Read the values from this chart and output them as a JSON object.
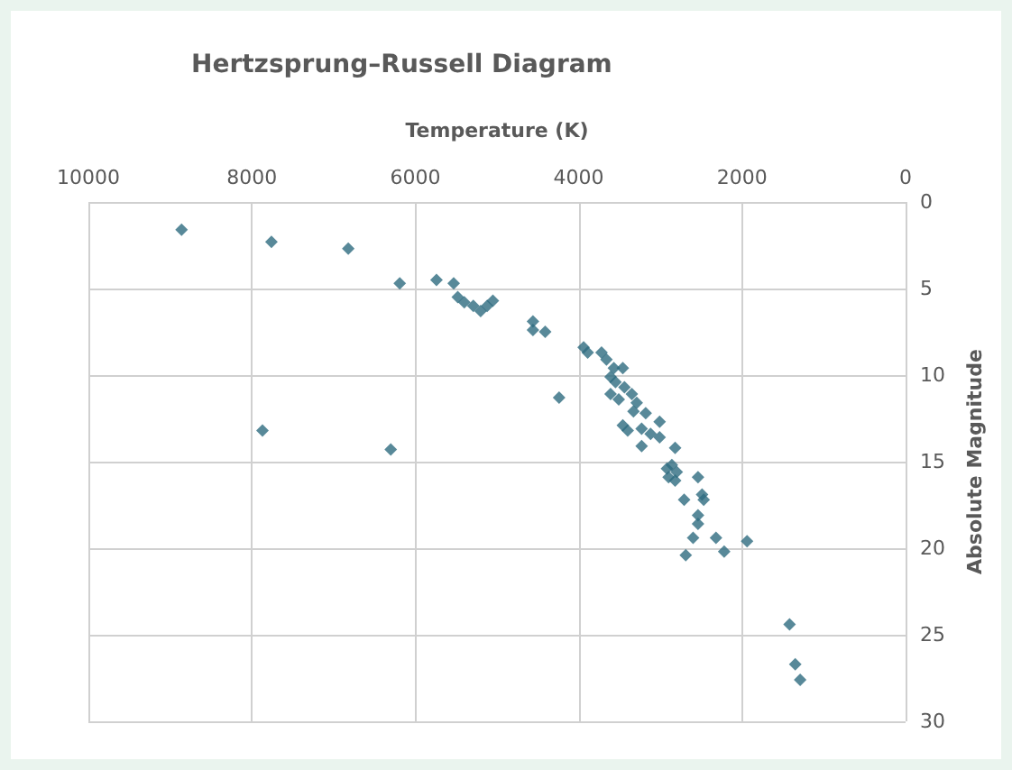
{
  "chart_data": {
    "type": "scatter",
    "title": "Hertzsprung–Russell Diagram",
    "xlabel": "Temperature (K)",
    "ylabel": "Absolute Magnitude",
    "x": [
      8860,
      7760,
      6820,
      6190,
      5740,
      5530,
      5480,
      5400,
      5290,
      5200,
      5120,
      5050,
      7870,
      6300,
      4560,
      4560,
      4410,
      4240,
      3940,
      3890,
      3720,
      3660,
      3570,
      3460,
      3610,
      3550,
      3440,
      3610,
      3350,
      3510,
      3290,
      3330,
      3180,
      3010,
      3460,
      3230,
      3400,
      3120,
      3010,
      3230,
      2820,
      2860,
      2920,
      2800,
      2900,
      2820,
      2540,
      2490,
      2470,
      2710,
      2540,
      2540,
      2600,
      2320,
      2690,
      2220,
      1940,
      1420,
      1350,
      1290
    ],
    "series": [
      {
        "color": "#2e6b80",
        "values": [
          1.6,
          2.3,
          2.7,
          4.7,
          4.5,
          4.7,
          5.5,
          5.8,
          6.0,
          6.3,
          6.0,
          5.7,
          13.2,
          14.3,
          6.9,
          7.4,
          7.5,
          11.3,
          8.4,
          8.7,
          8.7,
          9.1,
          9.6,
          9.6,
          10.1,
          10.4,
          10.7,
          11.1,
          11.1,
          11.4,
          11.6,
          12.1,
          12.2,
          12.7,
          12.9,
          13.1,
          13.2,
          13.4,
          13.6,
          14.1,
          14.2,
          15.2,
          15.4,
          15.6,
          15.9,
          16.1,
          15.9,
          16.9,
          17.2,
          17.2,
          18.1,
          18.6,
          19.4,
          19.4,
          20.4,
          20.2,
          19.6,
          24.4,
          26.7,
          27.6
        ]
      }
    ],
    "xlim": [
      10000,
      0
    ],
    "xticks": [
      10000,
      8000,
      6000,
      4000,
      2000,
      0
    ],
    "ylim": [
      30,
      0
    ],
    "yticks": [
      0,
      5,
      10,
      15,
      20,
      25,
      30
    ],
    "grid": true,
    "marker": "diamond"
  }
}
